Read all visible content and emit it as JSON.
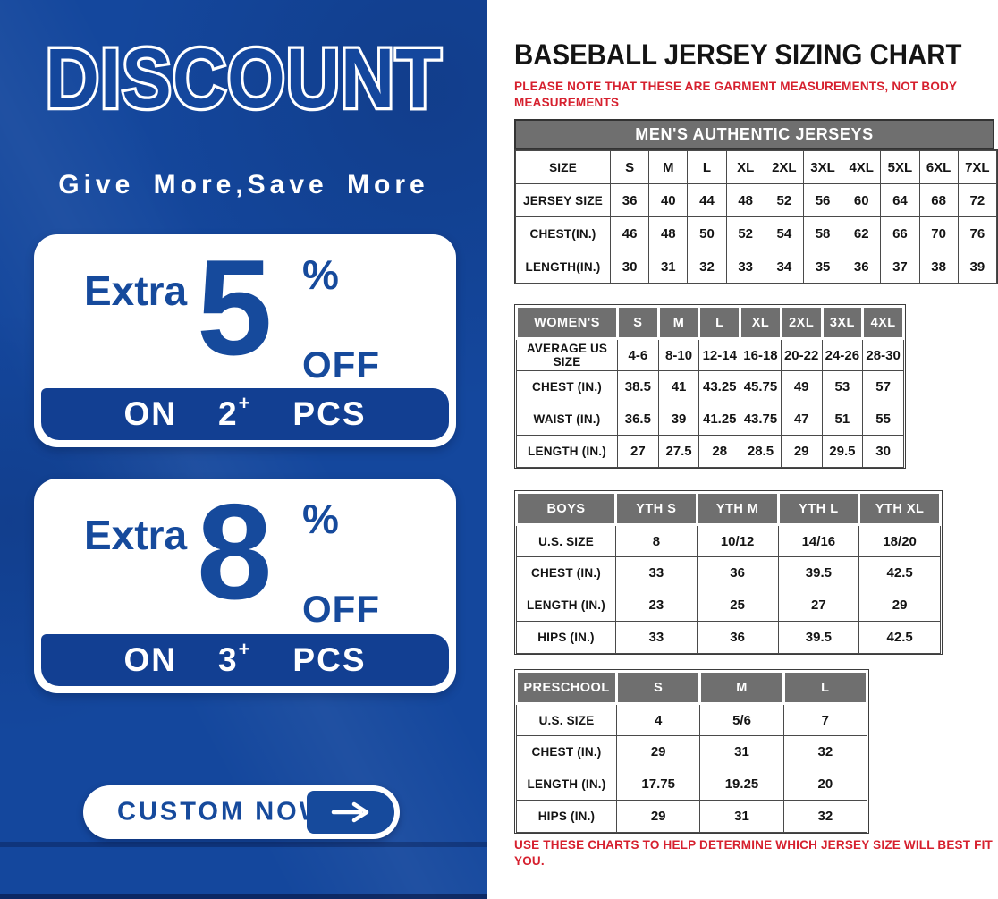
{
  "left_banner": {
    "title": "DISCOUNT",
    "subtitle": "Give More,Save More",
    "offers": [
      {
        "prefix": "Extra",
        "amount": "5",
        "percent": "%",
        "off_label": "OFF",
        "on_label": "ON",
        "quantity": "2",
        "plus": "+",
        "pcs_label": "PCS"
      },
      {
        "prefix": "Extra",
        "amount": "8",
        "percent": "%",
        "off_label": "OFF",
        "on_label": "ON",
        "quantity": "3",
        "plus": "+",
        "pcs_label": "PCS"
      }
    ],
    "cta_label": "CUSTOM NOW",
    "colors": {
      "background": "#14479D",
      "bar_blue": "#123F92",
      "text_blue": "#164A9C"
    }
  },
  "sizing_chart": {
    "title": "BASEBALL JERSEY SIZING CHART",
    "top_note": "PLEASE NOTE THAT THESE ARE GARMENT MEASUREMENTS, NOT BODY MEASUREMENTS",
    "bottom_note": "USE THESE CHARTS TO HELP DETERMINE WHICH JERSEY SIZE WILL BEST FIT YOU.",
    "colors": {
      "note_red": "#D6202E",
      "header_gray": "#6F6F6F"
    },
    "mens": {
      "banner": "MEN'S AUTHENTIC JERSEYS",
      "rows": [
        [
          "SIZE",
          "S",
          "M",
          "L",
          "XL",
          "2XL",
          "3XL",
          "4XL",
          "5XL",
          "6XL",
          "7XL"
        ],
        [
          "JERSEY SIZE",
          "36",
          "40",
          "44",
          "48",
          "52",
          "56",
          "60",
          "64",
          "68",
          "72"
        ],
        [
          "CHEST(IN.)",
          "46",
          "48",
          "50",
          "52",
          "54",
          "58",
          "62",
          "66",
          "70",
          "76"
        ],
        [
          "LENGTH(IN.)",
          "30",
          "31",
          "32",
          "33",
          "34",
          "35",
          "36",
          "37",
          "38",
          "39"
        ]
      ]
    },
    "womens": {
      "header": [
        "WOMEN'S",
        "S",
        "M",
        "L",
        "XL",
        "2XL",
        "3XL",
        "4XL"
      ],
      "rows": [
        [
          "AVERAGE US SIZE",
          "4-6",
          "8-10",
          "12-14",
          "16-18",
          "20-22",
          "24-26",
          "28-30"
        ],
        [
          "CHEST (IN.)",
          "38.5",
          "41",
          "43.25",
          "45.75",
          "49",
          "53",
          "57"
        ],
        [
          "WAIST (IN.)",
          "36.5",
          "39",
          "41.25",
          "43.75",
          "47",
          "51",
          "55"
        ],
        [
          "LENGTH (IN.)",
          "27",
          "27.5",
          "28",
          "28.5",
          "29",
          "29.5",
          "30"
        ]
      ]
    },
    "boys": {
      "header": [
        "BOYS",
        "YTH S",
        "YTH M",
        "YTH L",
        "YTH XL"
      ],
      "rows": [
        [
          "U.S. SIZE",
          "8",
          "10/12",
          "14/16",
          "18/20"
        ],
        [
          "CHEST (IN.)",
          "33",
          "36",
          "39.5",
          "42.5"
        ],
        [
          "LENGTH (IN.)",
          "23",
          "25",
          "27",
          "29"
        ],
        [
          "HIPS (IN.)",
          "33",
          "36",
          "39.5",
          "42.5"
        ]
      ]
    },
    "preschool": {
      "header": [
        "PRESCHOOL",
        "S",
        "M",
        "L"
      ],
      "rows": [
        [
          "U.S. SIZE",
          "4",
          "5/6",
          "7"
        ],
        [
          "CHEST (IN.)",
          "29",
          "31",
          "32"
        ],
        [
          "LENGTH (IN.)",
          "17.75",
          "19.25",
          "20"
        ],
        [
          "HIPS (IN.)",
          "29",
          "31",
          "32"
        ]
      ]
    }
  }
}
